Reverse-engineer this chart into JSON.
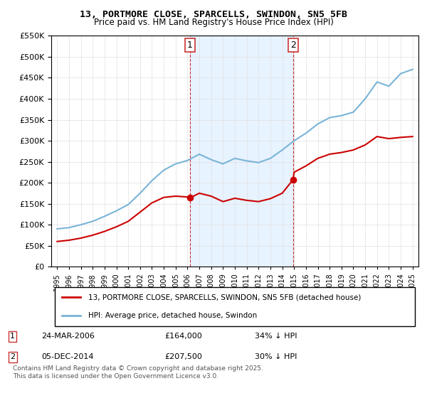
{
  "title": "13, PORTMORE CLOSE, SPARCELLS, SWINDON, SN5 5FB",
  "subtitle": "Price paid vs. HM Land Registry's House Price Index (HPI)",
  "legend_label_red": "13, PORTMORE CLOSE, SPARCELLS, SWINDON, SN5 5FB (detached house)",
  "legend_label_blue": "HPI: Average price, detached house, Swindon",
  "footnote": "Contains HM Land Registry data © Crown copyright and database right 2025.\nThis data is licensed under the Open Government Licence v3.0.",
  "sale1_label": "1",
  "sale1_date": "24-MAR-2006",
  "sale1_price": "£164,000",
  "sale1_hpi": "34% ↓ HPI",
  "sale2_label": "2",
  "sale2_date": "05-DEC-2014",
  "sale2_price": "£207,500",
  "sale2_hpi": "30% ↓ HPI",
  "sale1_year": 2006.22,
  "sale2_year": 2014.92,
  "sale1_price_val": 164000,
  "sale2_price_val": 207500,
  "ylim": [
    0,
    550000
  ],
  "xlim_start": 1994.5,
  "xlim_end": 2025.5,
  "bg_color": "#ffffff",
  "plot_bg_color": "#ffffff",
  "grid_color": "#e0e0e0",
  "red_color": "#cc0000",
  "blue_color": "#7ab4d8",
  "shade_color": "#ddeeff",
  "marker_box_color": "#cc3333"
}
